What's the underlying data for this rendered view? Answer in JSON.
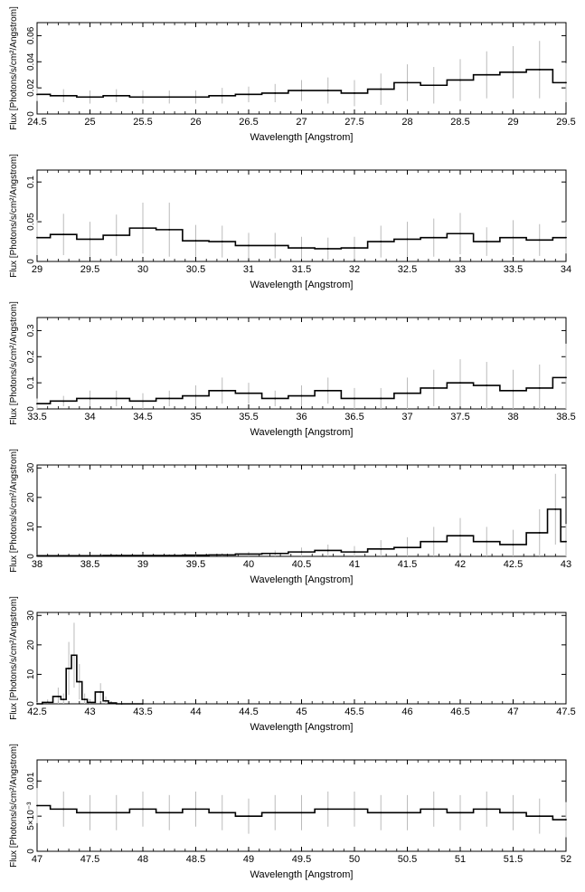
{
  "chart_data": [
    {
      "type": "line",
      "xlabel": "Wavelength [Angstrom]",
      "ylabel": "Flux [Photons/s/cm²/Angstrom]",
      "xlim": [
        24.5,
        29.5
      ],
      "ylim": [
        0,
        0.07
      ],
      "xticks": [
        "24.5",
        "25",
        "25.5",
        "26",
        "26.5",
        "27",
        "27.5",
        "28",
        "28.5",
        "29",
        "29.5"
      ],
      "xtick_values": [
        24.5,
        25,
        25.5,
        26,
        26.5,
        27,
        27.5,
        28,
        28.5,
        29,
        29.5
      ],
      "yticks": [
        "0",
        "0.02",
        "0.04",
        "0.06"
      ],
      "ytick_values": [
        0,
        0.02,
        0.04,
        0.06
      ],
      "series": [
        {
          "x": [
            24.5,
            24.75,
            25.0,
            25.25,
            25.5,
            25.75,
            26.0,
            26.25,
            26.5,
            26.75,
            27.0,
            27.25,
            27.5,
            27.75,
            28.0,
            28.25,
            28.5,
            28.75,
            29.0,
            29.25,
            29.5
          ],
          "y": [
            0.015,
            0.014,
            0.013,
            0.014,
            0.013,
            0.013,
            0.013,
            0.014,
            0.015,
            0.016,
            0.018,
            0.018,
            0.016,
            0.019,
            0.024,
            0.022,
            0.026,
            0.03,
            0.032,
            0.034,
            0.024
          ],
          "err": [
            0.005,
            0.005,
            0.005,
            0.005,
            0.005,
            0.005,
            0.005,
            0.006,
            0.006,
            0.007,
            0.008,
            0.01,
            0.01,
            0.012,
            0.014,
            0.014,
            0.016,
            0.018,
            0.02,
            0.022,
            0.015
          ]
        }
      ]
    },
    {
      "type": "line",
      "xlabel": "Wavelength [Angstrom]",
      "ylabel": "Flux [Photons/s/cm²/Angstrom]",
      "xlim": [
        29,
        34
      ],
      "ylim": [
        0,
        0.115
      ],
      "xticks": [
        "29",
        "29.5",
        "30",
        "30.5",
        "31",
        "31.5",
        "32",
        "32.5",
        "33",
        "33.5",
        "34"
      ],
      "xtick_values": [
        29,
        29.5,
        30,
        30.5,
        31,
        31.5,
        32,
        32.5,
        33,
        33.5,
        34
      ],
      "yticks": [
        "0",
        "0.05",
        "0.1"
      ],
      "ytick_values": [
        0,
        0.05,
        0.1
      ],
      "series": [
        {
          "x": [
            29.0,
            29.25,
            29.5,
            29.75,
            30.0,
            30.25,
            30.5,
            30.75,
            31.0,
            31.25,
            31.5,
            31.75,
            32.0,
            32.25,
            32.5,
            32.75,
            33.0,
            33.25,
            33.5,
            33.75,
            34.0
          ],
          "y": [
            0.03,
            0.034,
            0.028,
            0.033,
            0.042,
            0.04,
            0.026,
            0.025,
            0.02,
            0.02,
            0.017,
            0.016,
            0.017,
            0.025,
            0.028,
            0.03,
            0.035,
            0.025,
            0.03,
            0.027,
            0.03
          ],
          "err": [
            0.022,
            0.026,
            0.022,
            0.026,
            0.032,
            0.034,
            0.02,
            0.02,
            0.016,
            0.016,
            0.014,
            0.014,
            0.014,
            0.02,
            0.022,
            0.024,
            0.026,
            0.018,
            0.022,
            0.02,
            0.02
          ]
        }
      ]
    },
    {
      "type": "line",
      "xlabel": "Wavelength [Angstrom]",
      "ylabel": "Flux [Photons/s/cm²/Angstrom]",
      "xlim": [
        33.5,
        38.5
      ],
      "ylim": [
        0,
        0.35
      ],
      "xticks": [
        "33.5",
        "34",
        "34.5",
        "35",
        "35.5",
        "36",
        "36.5",
        "37",
        "37.5",
        "38",
        "38.5"
      ],
      "xtick_values": [
        33.5,
        34,
        34.5,
        35,
        35.5,
        36,
        36.5,
        37,
        37.5,
        38,
        38.5
      ],
      "yticks": [
        "0",
        "0.1",
        "0.2",
        "0.3"
      ],
      "ytick_values": [
        0,
        0.1,
        0.2,
        0.3
      ],
      "series": [
        {
          "x": [
            33.5,
            33.75,
            34.0,
            34.25,
            34.5,
            34.75,
            35.0,
            35.25,
            35.5,
            35.75,
            36.0,
            36.25,
            36.5,
            36.75,
            37.0,
            37.25,
            37.5,
            37.75,
            38.0,
            38.25,
            38.5
          ],
          "y": [
            0.02,
            0.03,
            0.04,
            0.04,
            0.03,
            0.04,
            0.05,
            0.07,
            0.06,
            0.04,
            0.05,
            0.07,
            0.04,
            0.04,
            0.06,
            0.08,
            0.1,
            0.09,
            0.07,
            0.08,
            0.12
          ],
          "err": [
            0.02,
            0.02,
            0.03,
            0.03,
            0.03,
            0.03,
            0.04,
            0.05,
            0.04,
            0.03,
            0.04,
            0.05,
            0.04,
            0.04,
            0.06,
            0.07,
            0.09,
            0.09,
            0.08,
            0.09,
            0.13
          ]
        }
      ]
    },
    {
      "type": "line",
      "xlabel": "Wavelength [Angstrom]",
      "ylabel": "Flux [Photons/s/cm²/Angstrom]",
      "xlim": [
        38,
        43
      ],
      "ylim": [
        0,
        31
      ],
      "xticks": [
        "38",
        "38.5",
        "39",
        "39.5",
        "40",
        "40.5",
        "41",
        "41.5",
        "42",
        "42.5",
        "43"
      ],
      "xtick_values": [
        38,
        38.5,
        39,
        39.5,
        40,
        40.5,
        41,
        41.5,
        42,
        42.5,
        43
      ],
      "yticks": [
        "0",
        "10",
        "20",
        "30"
      ],
      "ytick_values": [
        0,
        10,
        20,
        30
      ],
      "series": [
        {
          "x": [
            38.0,
            38.25,
            38.5,
            38.75,
            39.0,
            39.25,
            39.5,
            39.75,
            40.0,
            40.25,
            40.5,
            40.75,
            41.0,
            41.25,
            41.5,
            41.75,
            42.0,
            42.25,
            42.5,
            42.75,
            42.9,
            43.0
          ],
          "y": [
            0.2,
            0.2,
            0.2,
            0.3,
            0.3,
            0.3,
            0.4,
            0.5,
            0.8,
            1.0,
            1.5,
            2.0,
            1.5,
            2.5,
            3.0,
            5.0,
            7.0,
            5.0,
            4.0,
            8.0,
            16.0,
            5.0
          ],
          "err": [
            0.3,
            0.3,
            0.3,
            0.4,
            0.4,
            0.4,
            0.5,
            0.6,
            0.8,
            1.0,
            1.5,
            2.0,
            2.0,
            3.0,
            3.5,
            5.0,
            6.0,
            5.0,
            5.0,
            8.0,
            12.0,
            6.0
          ]
        }
      ]
    },
    {
      "type": "line",
      "xlabel": "Wavelength [Angstrom]",
      "ylabel": "Flux [Photons/s/cm²/Angstrom]",
      "xlim": [
        42.5,
        47.5
      ],
      "ylim": [
        0,
        31
      ],
      "xticks": [
        "42.5",
        "43",
        "43.5",
        "44",
        "44.5",
        "45",
        "45.5",
        "46",
        "46.5",
        "47",
        "47.5"
      ],
      "xtick_values": [
        42.5,
        43,
        43.5,
        44,
        44.5,
        45,
        45.5,
        46,
        46.5,
        47,
        47.5
      ],
      "yticks": [
        "0",
        "10",
        "20",
        "30"
      ],
      "ytick_values": [
        0,
        10,
        20,
        30
      ],
      "series": [
        {
          "x": [
            42.5,
            42.6,
            42.7,
            42.75,
            42.8,
            42.85,
            42.9,
            42.95,
            43.0,
            43.1,
            43.15,
            43.2,
            43.3,
            43.5
          ],
          "y": [
            0.0,
            0.5,
            2.5,
            1.5,
            12.0,
            16.5,
            7.5,
            1.5,
            0.5,
            4.0,
            1.0,
            0.3,
            0.0,
            0.0
          ],
          "err": [
            0.5,
            1.0,
            3.0,
            2.0,
            9.0,
            11.0,
            6.0,
            2.0,
            1.0,
            3.0,
            1.5,
            0.5,
            0.2,
            0.1
          ]
        }
      ]
    },
    {
      "type": "line",
      "xlabel": "Wavelength [Angstrom]",
      "ylabel": "Flux [Photons/s/cm²/Angstrom]",
      "xlim": [
        47,
        52
      ],
      "ylim": [
        0,
        0.013
      ],
      "xticks": [
        "47",
        "47.5",
        "48",
        "48.5",
        "49",
        "49.5",
        "50",
        "50.5",
        "51",
        "51.5",
        "52"
      ],
      "xtick_values": [
        47,
        47.5,
        48,
        48.5,
        49,
        49.5,
        50,
        50.5,
        51,
        51.5,
        52
      ],
      "yticks": [
        "0",
        "5×10⁻³",
        "0.01"
      ],
      "ytick_values": [
        0,
        0.005,
        0.01
      ],
      "series": [
        {
          "x": [
            47.0,
            47.25,
            47.5,
            47.75,
            48.0,
            48.25,
            48.5,
            48.75,
            49.0,
            49.25,
            49.5,
            49.75,
            50.0,
            50.25,
            50.5,
            50.75,
            51.0,
            51.25,
            51.5,
            51.75,
            52.0
          ],
          "y": [
            0.0065,
            0.006,
            0.0055,
            0.0055,
            0.006,
            0.0055,
            0.006,
            0.0055,
            0.005,
            0.0055,
            0.0055,
            0.006,
            0.006,
            0.0055,
            0.0055,
            0.006,
            0.0055,
            0.006,
            0.0055,
            0.005,
            0.0045
          ],
          "err": [
            0.0025,
            0.0025,
            0.0025,
            0.0025,
            0.0025,
            0.0025,
            0.0025,
            0.0025,
            0.0025,
            0.0025,
            0.0025,
            0.0025,
            0.0025,
            0.0025,
            0.0025,
            0.0025,
            0.0025,
            0.0025,
            0.0025,
            0.0025,
            0.0025
          ]
        }
      ]
    }
  ]
}
